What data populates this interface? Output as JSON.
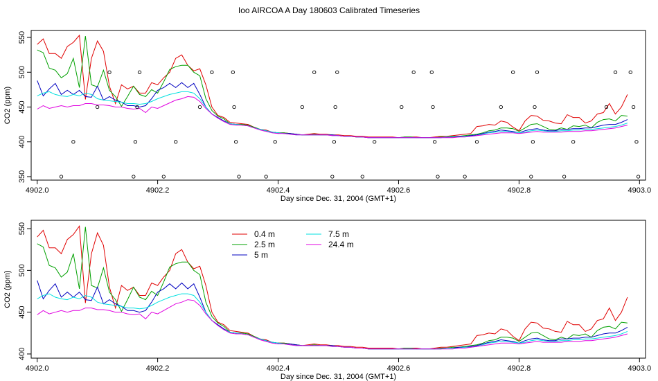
{
  "title": "Ioo AIRCOA A  Day 180603  Calibrated Timeseries",
  "colors": {
    "0.4 m": "#e00000",
    "2.5 m": "#00a000",
    "5 m": "#0000c0",
    "7.5 m": "#00e0e0",
    "24.4 m": "#e000e0"
  },
  "chart_data": [
    {
      "type": "line",
      "xlabel": "Day since Dec. 31, 2004 (GMT+1)",
      "ylabel": "CO2 (ppm)",
      "xlim": [
        4901.99,
        4903.01
      ],
      "ylim": [
        345,
        560
      ],
      "xticks": [
        "4902.0",
        "4902.2",
        "4902.4",
        "4902.6",
        "4902.8",
        "4903.0"
      ],
      "yticks": [
        "350",
        "400",
        "450",
        "500",
        "550"
      ],
      "grid": false,
      "x_start": 4902.0,
      "x_step": 0.01,
      "series": [
        {
          "name": "0.4 m",
          "values": [
            540,
            548,
            527,
            527,
            520,
            537,
            543,
            553,
            461,
            520,
            545,
            530,
            480,
            455,
            482,
            476,
            480,
            470,
            470,
            485,
            482,
            492,
            500,
            520,
            525,
            510,
            502,
            505,
            482,
            450,
            438,
            435,
            428,
            427,
            426,
            425,
            421,
            418,
            417,
            414,
            413,
            413,
            412,
            411,
            410,
            411,
            412,
            411,
            411,
            410,
            410,
            409,
            409,
            408,
            408,
            407,
            407,
            407,
            407,
            407,
            406,
            407,
            407,
            407,
            406,
            406,
            407,
            408,
            408,
            409,
            410,
            411,
            412,
            422,
            423,
            425,
            424,
            430,
            428,
            421,
            416,
            430,
            438,
            437,
            431,
            430,
            427,
            426,
            439,
            435,
            435,
            427,
            430,
            440,
            442,
            455,
            440,
            450,
            468
          ]
        },
        {
          "name": "2.5 m",
          "values": [
            532,
            528,
            506,
            503,
            492,
            498,
            520,
            478,
            552,
            482,
            479,
            503,
            474,
            465,
            451,
            465,
            480,
            468,
            465,
            475,
            470,
            486,
            504,
            508,
            510,
            510,
            500,
            495,
            462,
            445,
            437,
            433,
            426,
            425,
            425,
            424,
            421,
            418,
            416,
            414,
            413,
            413,
            412,
            411,
            410,
            410,
            411,
            410,
            410,
            410,
            409,
            408,
            408,
            407,
            407,
            406,
            406,
            406,
            406,
            406,
            406,
            407,
            407,
            406,
            406,
            406,
            406,
            407,
            407,
            408,
            408,
            409,
            410,
            411,
            413,
            416,
            417,
            420,
            420,
            419,
            415,
            420,
            425,
            426,
            422,
            418,
            417,
            420,
            418,
            423,
            422,
            424,
            420,
            428,
            432,
            433,
            430,
            438,
            437
          ]
        },
        {
          "name": "5 m",
          "values": [
            488,
            466,
            476,
            484,
            468,
            474,
            468,
            474,
            465,
            464,
            480,
            460,
            465,
            460,
            457,
            452,
            452,
            450,
            452,
            462,
            474,
            478,
            484,
            478,
            485,
            478,
            484,
            468,
            450,
            440,
            435,
            430,
            426,
            425,
            424,
            423,
            420,
            418,
            416,
            414,
            413,
            412,
            412,
            411,
            410,
            410,
            410,
            410,
            410,
            410,
            409,
            408,
            408,
            407,
            407,
            406,
            406,
            406,
            406,
            406,
            406,
            406,
            406,
            406,
            406,
            406,
            406,
            406,
            407,
            407,
            408,
            408,
            409,
            410,
            412,
            414,
            415,
            417,
            416,
            415,
            413,
            416,
            418,
            419,
            417,
            416,
            416,
            418,
            418,
            419,
            419,
            420,
            420,
            422,
            424,
            425,
            425,
            428,
            432
          ]
        },
        {
          "name": "7.5 m",
          "values": [
            466,
            470,
            472,
            468,
            466,
            465,
            468,
            466,
            470,
            468,
            462,
            460,
            459,
            458,
            457,
            455,
            455,
            454,
            455,
            458,
            462,
            465,
            468,
            470,
            472,
            472,
            470,
            462,
            450,
            440,
            434,
            429,
            426,
            425,
            424,
            423,
            420,
            418,
            416,
            414,
            413,
            412,
            411,
            410,
            410,
            410,
            410,
            410,
            410,
            409,
            409,
            408,
            408,
            407,
            407,
            406,
            406,
            406,
            406,
            406,
            406,
            406,
            406,
            406,
            406,
            406,
            406,
            406,
            407,
            407,
            407,
            408,
            408,
            409,
            411,
            413,
            414,
            415,
            415,
            414,
            413,
            414,
            416,
            417,
            416,
            415,
            415,
            416,
            416,
            417,
            417,
            418,
            418,
            419,
            420,
            421,
            422,
            424,
            427
          ]
        },
        {
          "name": "24.4 m",
          "values": [
            447,
            452,
            448,
            450,
            452,
            450,
            452,
            452,
            455,
            455,
            453,
            453,
            452,
            450,
            450,
            448,
            447,
            448,
            442,
            450,
            448,
            452,
            456,
            460,
            462,
            465,
            464,
            458,
            448,
            440,
            434,
            429,
            425,
            424,
            424,
            423,
            420,
            417,
            415,
            413,
            412,
            412,
            411,
            410,
            410,
            410,
            410,
            410,
            410,
            409,
            409,
            408,
            408,
            407,
            407,
            406,
            406,
            406,
            406,
            406,
            406,
            406,
            406,
            406,
            406,
            406,
            406,
            406,
            406,
            406,
            407,
            407,
            408,
            409,
            410,
            411,
            412,
            413,
            413,
            413,
            412,
            413,
            414,
            415,
            414,
            414,
            414,
            414,
            415,
            415,
            415,
            416,
            416,
            417,
            418,
            419,
            420,
            422,
            424
          ]
        }
      ],
      "points": {
        "x": [
          4902.04,
          4902.06,
          4902.1,
          4902.12,
          4902.16,
          4902.163,
          4902.166,
          4902.17,
          4902.21,
          4902.23,
          4902.27,
          4902.29,
          4902.325,
          4902.327,
          4902.33,
          4902.335,
          4902.38,
          4902.395,
          4902.44,
          4902.46,
          4902.49,
          4902.493,
          4902.495,
          4902.498,
          4902.54,
          4902.56,
          4902.605,
          4902.625,
          4902.655,
          4902.657,
          4902.66,
          4902.665,
          4902.71,
          4902.73,
          4902.77,
          4902.79,
          4902.82,
          4902.823,
          4902.826,
          4902.83,
          4902.875,
          4902.89,
          4902.945,
          4902.96,
          4902.985,
          4902.99,
          4902.995,
          4902.998
        ],
        "y": [
          350,
          400,
          450,
          500,
          350,
          400,
          450,
          500,
          350,
          400,
          450,
          500,
          500,
          450,
          400,
          350,
          350,
          400,
          450,
          500,
          350,
          400,
          450,
          500,
          350,
          400,
          450,
          500,
          500,
          450,
          400,
          350,
          350,
          400,
          450,
          500,
          350,
          400,
          450,
          500,
          350,
          400,
          450,
          500,
          500,
          450,
          400,
          350
        ]
      }
    },
    {
      "type": "line",
      "xlabel": "Day since Dec. 31, 2004 (GMT+1)",
      "ylabel": "CO2 (ppm)",
      "xlim": [
        4901.99,
        4903.01
      ],
      "ylim": [
        395,
        560
      ],
      "xticks": [
        "4902.0",
        "4902.2",
        "4902.4",
        "4902.6",
        "4902.8",
        "4903.0"
      ],
      "yticks": [
        "400",
        "450",
        "500",
        "550"
      ],
      "grid": false,
      "legend": "top-left",
      "legend_entries": [
        "0.4 m",
        "2.5 m",
        "5 m",
        "7.5 m",
        "24.4 m"
      ],
      "series_ref": "same as panel 1"
    }
  ]
}
